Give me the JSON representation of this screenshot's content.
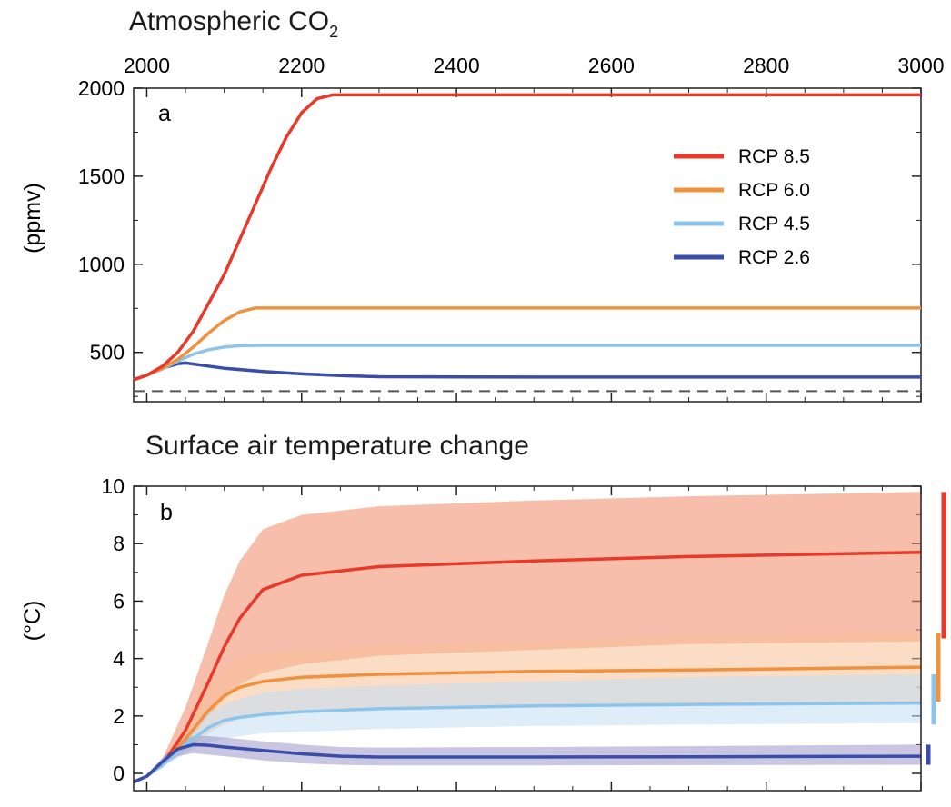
{
  "chart_data": [
    {
      "type": "line",
      "panel": "a",
      "title": "Atmospheric CO",
      "title_subscript": "2",
      "ylabel": "(ppmv)",
      "xlim": [
        1983,
        3000
      ],
      "ylim": [
        220,
        2000
      ],
      "x_ticks": [
        2000,
        2200,
        2400,
        2600,
        2800,
        3000
      ],
      "x_tick_labels": [
        "2000",
        "2200",
        "2400",
        "2600",
        "2800",
        "3000"
      ],
      "y_ticks": [
        500,
        1000,
        1500,
        2000
      ],
      "y_tick_labels": [
        "500",
        "1000",
        "1500",
        "2000"
      ],
      "reference_line": {
        "y": 280,
        "style": "dashed"
      },
      "legend_position": "upper-right",
      "series": [
        {
          "name": "RCP 8.5",
          "color": "#e8392a",
          "x": [
            1983,
            2000,
            2020,
            2040,
            2060,
            2080,
            2100,
            2120,
            2140,
            2160,
            2180,
            2200,
            2220,
            2240,
            2250,
            2300,
            2500,
            2800,
            3000
          ],
          "y": [
            345,
            370,
            420,
            500,
            620,
            780,
            940,
            1140,
            1340,
            1540,
            1720,
            1860,
            1940,
            1962,
            1962,
            1962,
            1962,
            1962,
            1962
          ]
        },
        {
          "name": "RCP 6.0",
          "color": "#f0913f",
          "x": [
            1983,
            2000,
            2020,
            2040,
            2060,
            2080,
            2100,
            2120,
            2140,
            2150,
            2200,
            2500,
            2800,
            3000
          ],
          "y": [
            345,
            370,
            410,
            460,
            530,
            610,
            680,
            730,
            752,
            752,
            752,
            752,
            752,
            752
          ]
        },
        {
          "name": "RCP 4.5",
          "color": "#8cc4ec",
          "x": [
            1983,
            2000,
            2020,
            2040,
            2060,
            2080,
            2100,
            2120,
            2150,
            2200,
            2500,
            2800,
            3000
          ],
          "y": [
            345,
            370,
            405,
            450,
            490,
            515,
            530,
            538,
            540,
            540,
            540,
            540,
            540
          ]
        },
        {
          "name": "RCP 2.6",
          "color": "#3a4da8",
          "x": [
            1983,
            2000,
            2020,
            2040,
            2050,
            2075,
            2100,
            2150,
            2200,
            2250,
            2300,
            2500,
            2800,
            3000
          ],
          "y": [
            345,
            370,
            410,
            435,
            440,
            425,
            410,
            392,
            378,
            368,
            362,
            360,
            360,
            360
          ]
        }
      ]
    },
    {
      "type": "area",
      "panel": "b",
      "title": "Surface air temperature change",
      "ylabel": "(°C)",
      "xlim": [
        1983,
        3000
      ],
      "ylim": [
        -0.6,
        10
      ],
      "x_ticks": [
        2000,
        2200,
        2400,
        2600,
        2800,
        3000
      ],
      "y_ticks": [
        0,
        2,
        4,
        6,
        8,
        10
      ],
      "y_tick_labels": [
        "0",
        "2",
        "4",
        "6",
        "8",
        "10"
      ],
      "series": [
        {
          "name": "RCP 8.5",
          "color": "#e8392a",
          "band_color": "#f08a66",
          "x": [
            1983,
            2000,
            2020,
            2050,
            2080,
            2100,
            2120,
            2150,
            2200,
            2300,
            2500,
            2700,
            3000
          ],
          "y": [
            -0.3,
            -0.1,
            0.3,
            1.5,
            3.2,
            4.4,
            5.4,
            6.4,
            6.9,
            7.2,
            7.4,
            7.55,
            7.7
          ],
          "low": [
            -0.3,
            -0.1,
            0.2,
            1.0,
            2.0,
            2.6,
            3.1,
            3.5,
            3.8,
            4.1,
            4.3,
            4.5,
            4.6
          ],
          "high": [
            -0.3,
            -0.05,
            0.5,
            2.3,
            4.6,
            6.2,
            7.4,
            8.5,
            9.0,
            9.3,
            9.5,
            9.65,
            9.8
          ],
          "range_bar": [
            4.7,
            9.8
          ]
        },
        {
          "name": "RCP 6.0",
          "color": "#f0913f",
          "band_color": "#f7bf95",
          "x": [
            1983,
            2000,
            2020,
            2050,
            2080,
            2100,
            2120,
            2150,
            2200,
            2300,
            2500,
            2700,
            3000
          ],
          "y": [
            -0.3,
            -0.1,
            0.3,
            1.2,
            2.2,
            2.7,
            3.0,
            3.2,
            3.35,
            3.45,
            3.55,
            3.6,
            3.7
          ],
          "low": [
            -0.3,
            -0.1,
            0.2,
            0.8,
            1.4,
            1.7,
            1.9,
            2.1,
            2.2,
            2.3,
            2.4,
            2.45,
            2.5
          ],
          "high": [
            -0.3,
            -0.05,
            0.4,
            1.6,
            3.0,
            3.6,
            4.0,
            4.2,
            4.3,
            4.4,
            4.6,
            4.8,
            4.9
          ],
          "range_bar": [
            2.5,
            4.9
          ]
        },
        {
          "name": "RCP 4.5",
          "color": "#8cc4ec",
          "band_color": "#c2dff3",
          "x": [
            1983,
            2000,
            2020,
            2050,
            2080,
            2100,
            2120,
            2150,
            2200,
            2300,
            2500,
            2700,
            3000
          ],
          "y": [
            -0.3,
            -0.1,
            0.3,
            1.0,
            1.6,
            1.85,
            1.95,
            2.05,
            2.15,
            2.25,
            2.35,
            2.4,
            2.45
          ],
          "low": [
            -0.3,
            -0.1,
            0.2,
            0.7,
            1.1,
            1.2,
            1.3,
            1.4,
            1.45,
            1.55,
            1.65,
            1.7,
            1.75
          ],
          "high": [
            -0.3,
            -0.05,
            0.4,
            1.3,
            2.1,
            2.4,
            2.6,
            2.8,
            2.95,
            3.05,
            3.2,
            3.35,
            3.45
          ],
          "range_bar": [
            1.7,
            3.45
          ]
        },
        {
          "name": "RCP 2.6",
          "color": "#3a4da8",
          "band_color": "#9d97c9",
          "x": [
            1983,
            2000,
            2020,
            2040,
            2060,
            2080,
            2100,
            2150,
            2200,
            2250,
            2300,
            2500,
            2700,
            3000
          ],
          "y": [
            -0.3,
            -0.1,
            0.4,
            0.85,
            1.0,
            0.98,
            0.92,
            0.8,
            0.68,
            0.6,
            0.57,
            0.57,
            0.58,
            0.6
          ],
          "low": [
            -0.3,
            -0.1,
            0.3,
            0.6,
            0.7,
            0.65,
            0.6,
            0.45,
            0.35,
            0.3,
            0.28,
            0.28,
            0.29,
            0.3
          ],
          "high": [
            -0.3,
            -0.05,
            0.55,
            1.1,
            1.3,
            1.3,
            1.25,
            1.12,
            1.0,
            0.92,
            0.9,
            0.92,
            0.95,
            1.0
          ],
          "range_bar": [
            0.3,
            1.0
          ]
        }
      ]
    }
  ]
}
